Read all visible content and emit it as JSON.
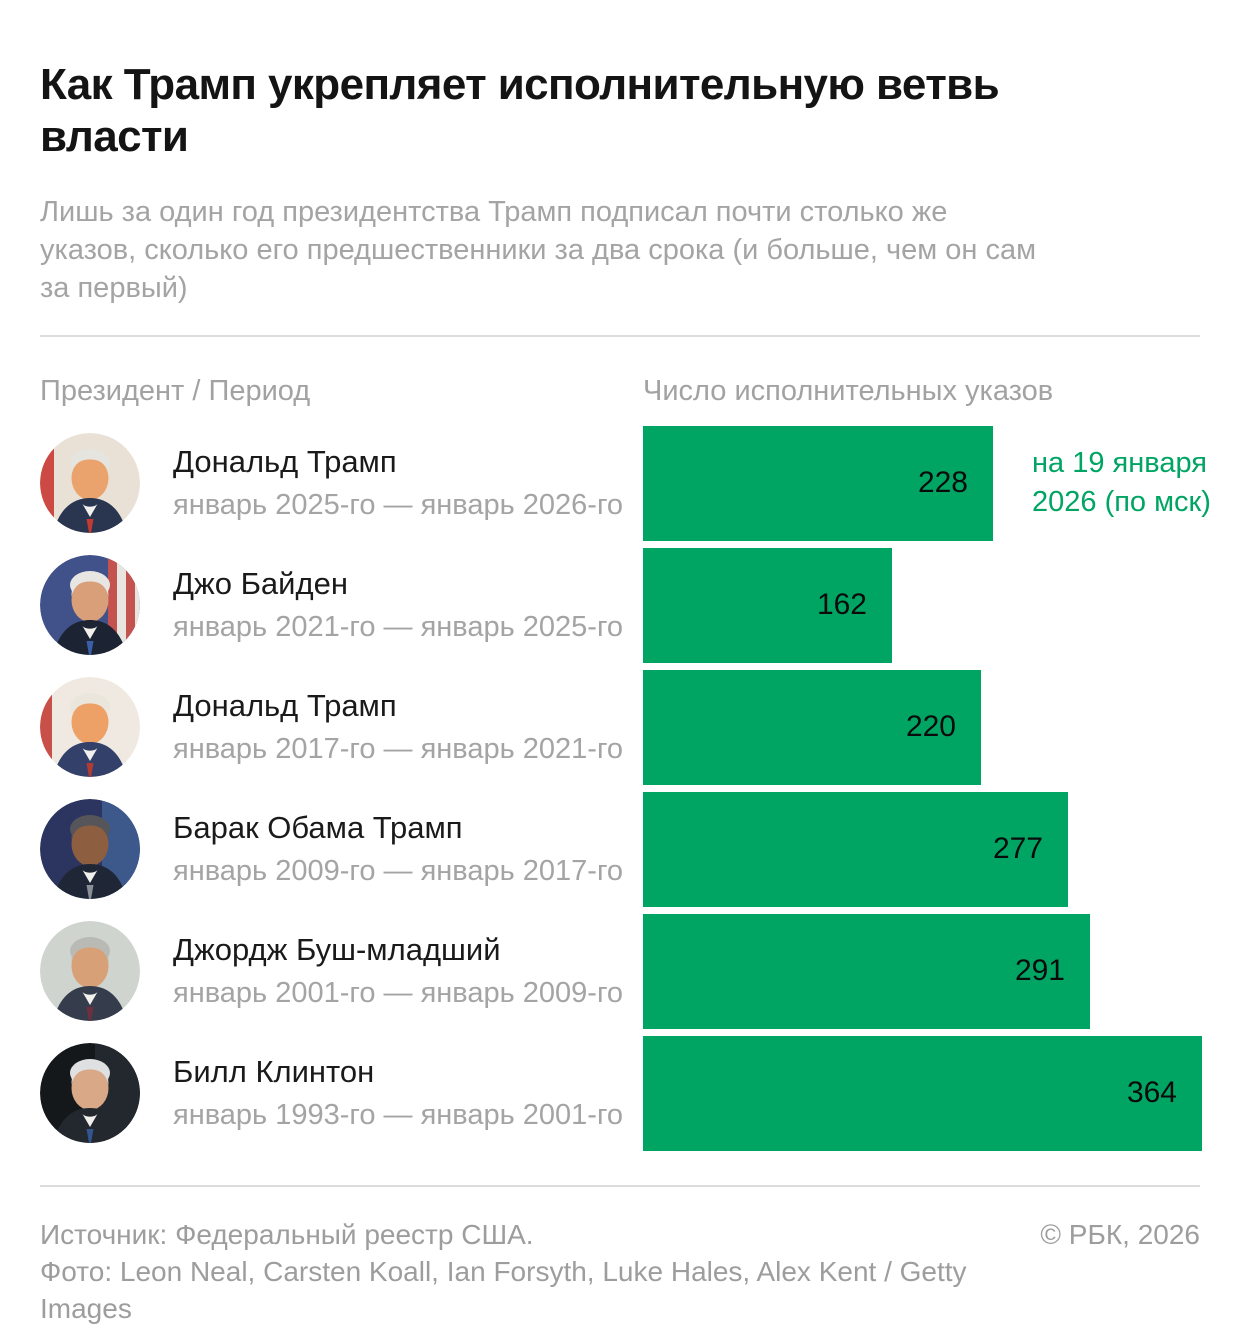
{
  "header": {
    "title_lines": [
      "Как Трамп укрепляет исполнительную ветвь",
      "власти"
    ],
    "subtitle_lines": [
      "Лишь за один год президентства Трамп подписал почти столько же",
      "указов, сколько его предшественники за два срока (и больше, чем он сам",
      "за первый)"
    ]
  },
  "columns": {
    "left": "Президент / Период",
    "right": "Число исполнительных указов"
  },
  "chart_data": {
    "type": "bar",
    "orientation": "horizontal",
    "title": "Как Трамп укрепляет исполнительную ветвь власти",
    "categories": [
      "Дональд Трамп",
      "Джо Байден",
      "Дональд Трамп",
      "Барак Обама Трамп",
      "Джордж Буш-младший",
      "Билл Клинтон"
    ],
    "values": [
      228,
      162,
      220,
      277,
      291,
      364
    ],
    "xlim": [
      0,
      364
    ],
    "bar_color": "#00a564",
    "value_label_color": "#0b0b0b",
    "annotation_color": "#00a564",
    "legend": "none",
    "grid": false,
    "rows": [
      {
        "name": "Дональд Трамп",
        "period": "январь 2025-го — январь 2026-го",
        "value": "228",
        "note": "на 19 января 2026 (по мск)",
        "photo": "portrait-donald-trump-2025",
        "avatar": {
          "bg": "#e9e1d6",
          "deco": [
            {
              "x": 0,
              "w": 14,
              "c": "#cc4a43"
            }
          ],
          "skin": "#eba36e",
          "hair": "#e6e4de",
          "suit": "#2a3550",
          "tie": "#c03b33"
        }
      },
      {
        "name": "Джо Байден",
        "period": "январь 2021-го — январь 2025-го",
        "value": "162",
        "photo": "portrait-joe-biden",
        "avatar": {
          "bg": "#41518a",
          "deco": [
            {
              "x": 68,
              "w": 9,
              "c": "#c4524e"
            },
            {
              "x": 77,
              "w": 9,
              "c": "#e8e4e0"
            },
            {
              "x": 86,
              "w": 9,
              "c": "#c4524e"
            },
            {
              "x": 95,
              "w": 5,
              "c": "#e8e4e0"
            }
          ],
          "skin": "#d89f79",
          "hair": "#e8e6e2",
          "suit": "#1c2333",
          "tie": "#3a5fa8"
        }
      },
      {
        "name": "Дональд Трамп",
        "period": "январь 2017-го — январь 2021-го",
        "value": "220",
        "photo": "portrait-donald-trump-2017",
        "avatar": {
          "bg": "#efe9e1",
          "deco": [
            {
              "x": 0,
              "w": 12,
              "c": "#c94f49"
            }
          ],
          "skin": "#eda166",
          "hair": "#eae6dc",
          "suit": "#33406a",
          "tie": "#b23c34"
        }
      },
      {
        "name": "Барак Обама Трамп",
        "period": "январь 2009-го — январь 2017-го",
        "value": "277",
        "photo": "portrait-barack-obama",
        "avatar": {
          "bg": "#2b3560",
          "deco": [
            {
              "x": 62,
              "w": 38,
              "c": "#3d598c"
            }
          ],
          "skin": "#8d5f40",
          "hair": "#55555a",
          "suit": "#1f2737",
          "tie": "#8a8f98"
        }
      },
      {
        "name": "Джордж Буш-младший",
        "period": "январь 2001-го — январь 2009-го",
        "value": "291",
        "photo": "portrait-george-w-bush",
        "avatar": {
          "bg": "#cfd4cf",
          "deco": [],
          "skin": "#d7a076",
          "hair": "#b9bab6",
          "suit": "#353d4d",
          "tie": "#6e3040"
        }
      },
      {
        "name": "Билл Клинтон",
        "period": "январь 1993-го — январь 2001-го",
        "value": "364",
        "photo": "portrait-bill-clinton",
        "avatar": {
          "bg": "#15181a",
          "deco": [
            {
              "x": 55,
              "w": 45,
              "c": "#23282e"
            }
          ],
          "skin": "#d9a887",
          "hair": "#dfe0e2",
          "suit": "#23282f",
          "tie": "#33548e"
        }
      }
    ]
  },
  "footer": {
    "source": "Источник: Федеральный реестр США.",
    "photo_credit_lines": [
      "Фото: Leon Neal, Carsten Koall, Ian Forsyth, Luke Hales, Alex Kent / Getty",
      "Images"
    ],
    "copyright": "© РБК, 2026"
  }
}
